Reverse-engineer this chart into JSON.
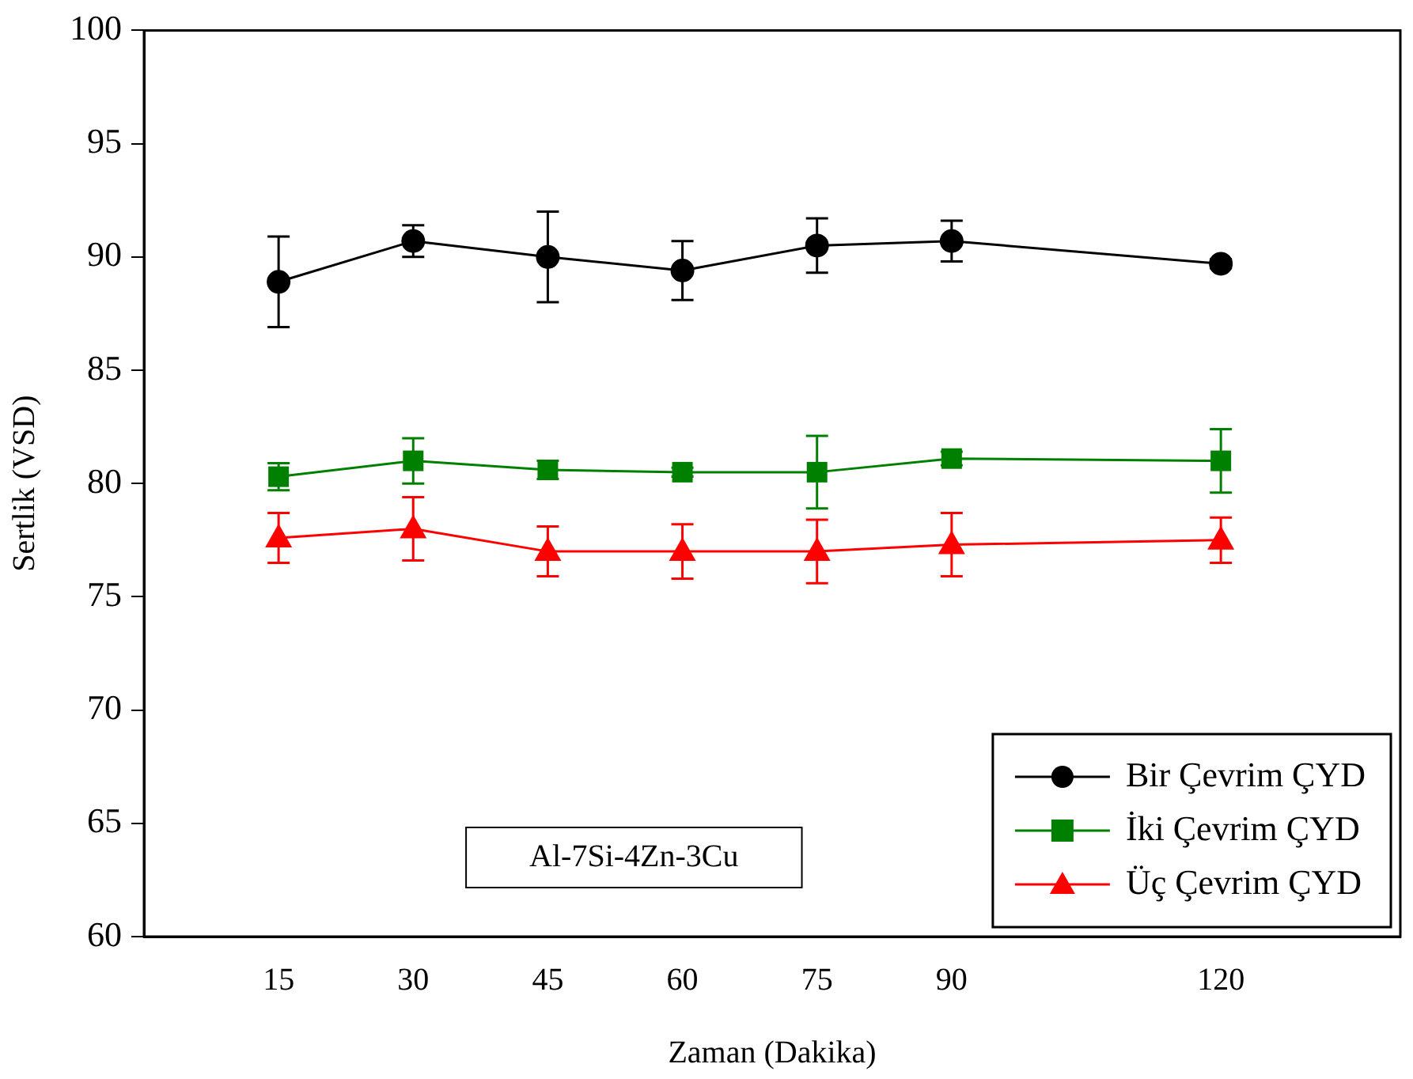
{
  "chart_data": {
    "type": "line",
    "xlabel": "Zaman (Dakika)",
    "ylabel": "Sertlik (VSD)",
    "x": [
      15,
      30,
      45,
      60,
      75,
      90,
      120
    ],
    "xlim": [
      0,
      140
    ],
    "xticks": [
      15,
      30,
      45,
      60,
      75,
      90,
      120
    ],
    "ylim": [
      60,
      100
    ],
    "yticks": [
      60,
      65,
      70,
      75,
      80,
      85,
      90,
      95,
      100
    ],
    "grid": false,
    "legend": "bottom right",
    "line_style": "solid",
    "annotations": [
      "Al-7Si-4Zn-3Cu"
    ],
    "series": [
      {
        "name": "Bir Çevrim ÇYD",
        "color": "#000000",
        "marker": "circle",
        "values": [
          88.9,
          90.7,
          90.0,
          89.4,
          90.5,
          90.7,
          89.7
        ],
        "errors": [
          2.0,
          0.7,
          2.0,
          1.3,
          1.2,
          0.9,
          0.2
        ]
      },
      {
        "name": "İki Çevrim ÇYD",
        "color": "#008000",
        "marker": "square",
        "values": [
          80.3,
          81.0,
          80.6,
          80.5,
          80.5,
          81.1,
          81.0
        ],
        "errors": [
          0.6,
          1.0,
          0.4,
          0.2,
          1.6,
          0.3,
          1.4
        ]
      },
      {
        "name": "Üç Çevrim ÇYD",
        "color": "#ff0000",
        "marker": "triangle",
        "values": [
          77.6,
          78.0,
          77.0,
          77.0,
          77.0,
          77.3,
          77.5
        ],
        "errors": [
          1.1,
          1.4,
          1.1,
          1.2,
          1.4,
          1.4,
          1.0
        ]
      }
    ]
  }
}
